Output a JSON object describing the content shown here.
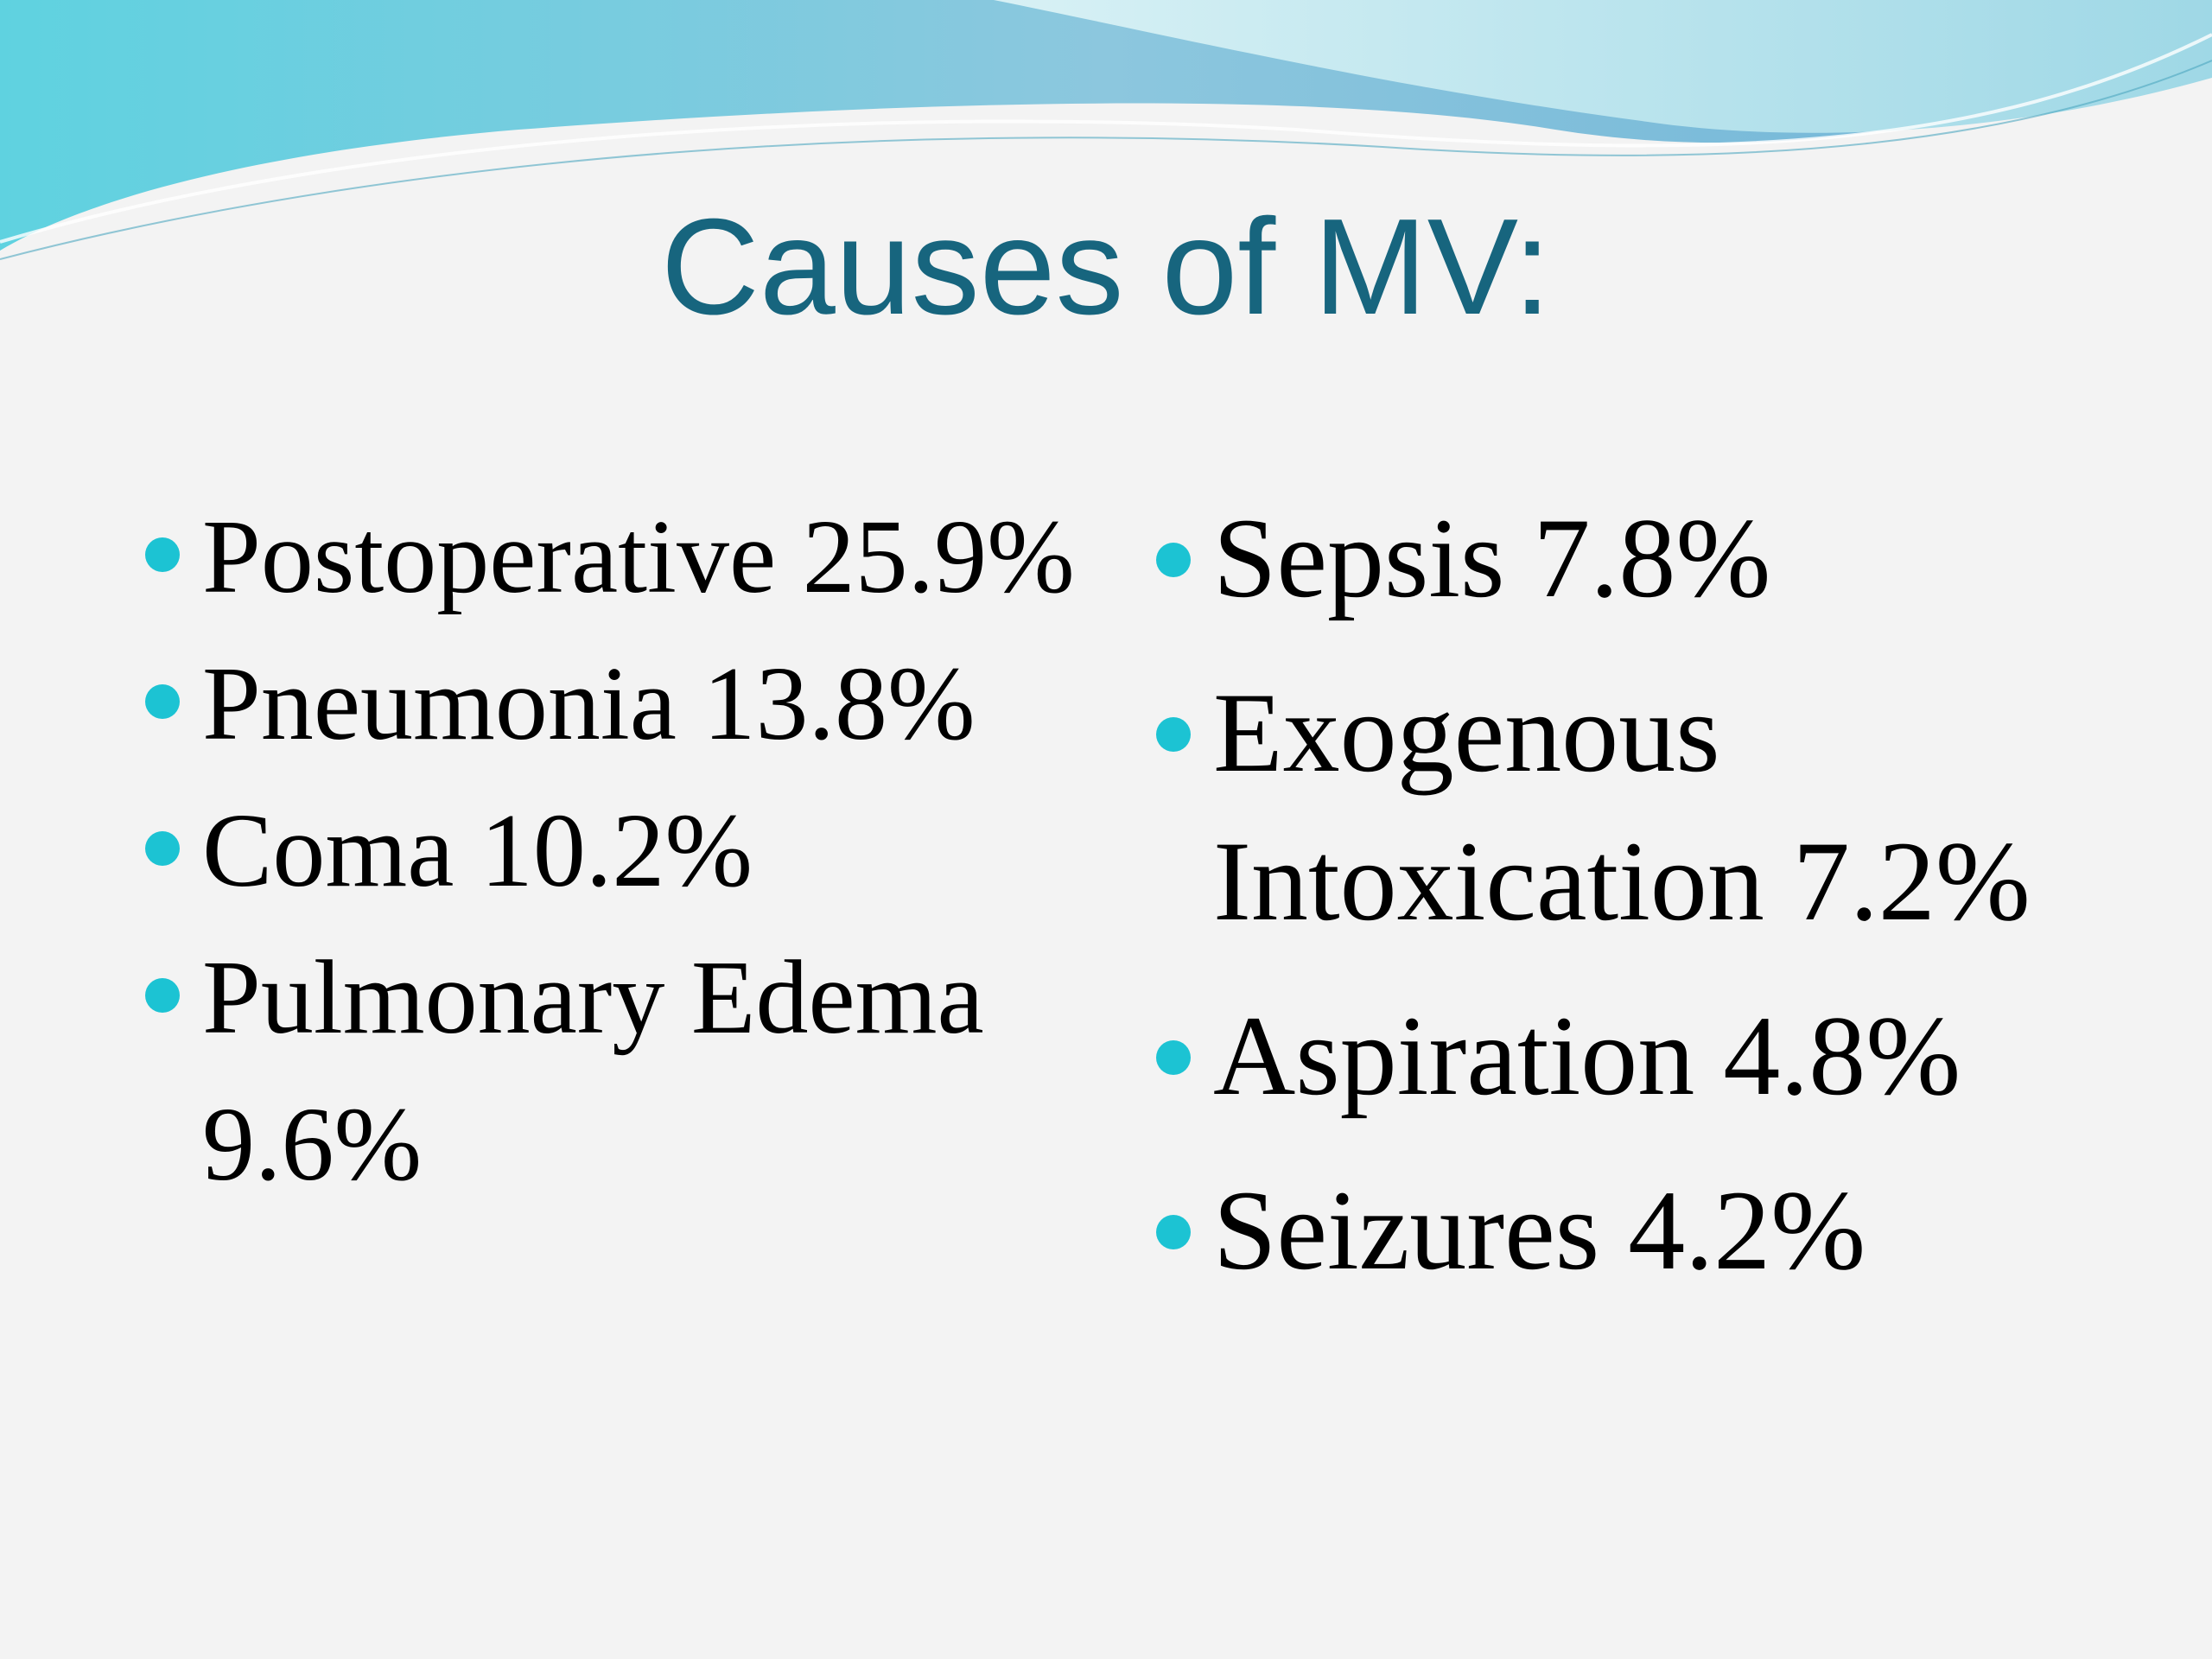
{
  "title": "Causes of MV:",
  "left_list": [
    "Postoperative 25.9%",
    "Pneumonia 13.8%",
    "Coma 10.2%",
    "Pulmonary Edema 9.6%"
  ],
  "right_list": [
    "Sepsis 7.8%",
    "Exogenous Intoxication 7.2%",
    "Aspiration 4.8%",
    "Seizures 4.2%"
  ]
}
